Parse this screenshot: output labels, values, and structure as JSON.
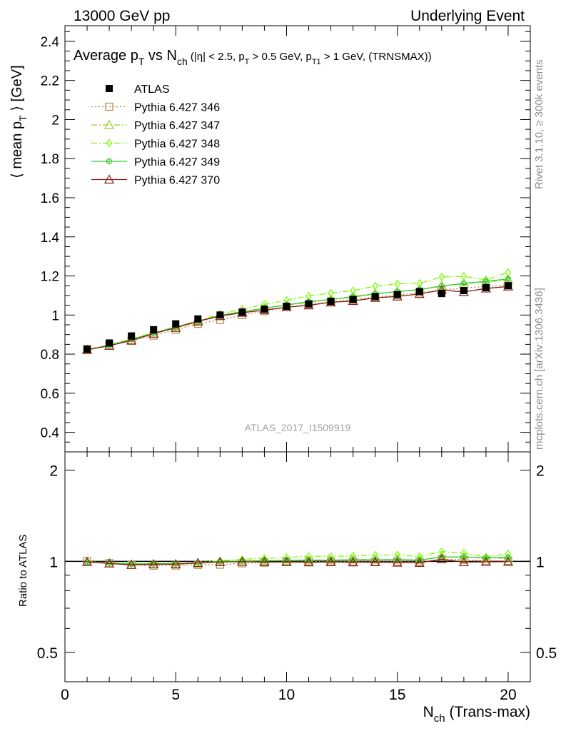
{
  "header": {
    "left": "13000 GeV pp",
    "right": "Underlying Event"
  },
  "side_labels": {
    "rivet": "Rivet 3.1.10, ≥ 300k events",
    "mcplots": "mcplots.cern.ch [arXiv:1306.3436]"
  },
  "chart_data": [
    {
      "type": "line",
      "title_parts": {
        "a": "Average p",
        "a_sub": "T",
        "b": " vs N",
        "b_sub": "ch",
        "c": " (|η| < 2.5, p",
        "c_sub": "T",
        "d": " > 0.5 GeV, p",
        "d_sub": "T1",
        "e": " > 1 GeV, (TRNSMAX))"
      },
      "ylabel_parts": {
        "a": "⟨ mean p",
        "a_sub": "T",
        "b": " ⟩ [GeV]"
      },
      "watermark": "ATLAS_2017_I1509919",
      "xlim": [
        0,
        21
      ],
      "ylim": [
        0.3,
        2.48
      ],
      "yticks": [
        0.4,
        0.6,
        0.8,
        1,
        1.2,
        1.4,
        1.6,
        1.8,
        2,
        2.2,
        2.4
      ],
      "ytick_labels": [
        "0.4",
        "0.6",
        "0.8",
        "1",
        "1.2",
        "1.4",
        "1.6",
        "1.8",
        "2",
        "2.2",
        "2.4"
      ],
      "x": [
        1,
        2,
        3,
        4,
        5,
        6,
        7,
        8,
        9,
        10,
        11,
        12,
        13,
        14,
        15,
        16,
        17,
        18,
        19,
        20
      ],
      "legend_position": "top-left",
      "series": [
        {
          "name": "ATLAS",
          "color": "#000000",
          "marker": "filled-square",
          "line": "none",
          "values": [
            0.825,
            0.857,
            0.893,
            0.925,
            0.955,
            0.98,
            1.0,
            1.015,
            1.03,
            1.045,
            1.057,
            1.07,
            1.08,
            1.095,
            1.105,
            1.12,
            1.11,
            1.125,
            1.14,
            1.15
          ]
        },
        {
          "name": "Pythia 6.427 346",
          "color": "#b8864b",
          "marker": "open-square",
          "line": "dotted",
          "values": [
            0.826,
            0.845,
            0.868,
            0.895,
            0.925,
            0.955,
            0.975,
            1.0,
            1.02,
            1.04,
            1.055,
            1.068,
            1.078,
            1.092,
            1.102,
            1.115,
            1.128,
            1.138,
            1.146,
            1.155
          ]
        },
        {
          "name": "Pythia 6.427 347",
          "color": "#9acd32",
          "marker": "open-triangle",
          "line": "dashdot",
          "values": [
            0.822,
            0.843,
            0.87,
            0.905,
            0.935,
            0.965,
            0.995,
            1.015,
            1.035,
            1.05,
            1.065,
            1.08,
            1.095,
            1.11,
            1.12,
            1.13,
            1.15,
            1.16,
            1.17,
            1.178
          ]
        },
        {
          "name": "Pythia 6.427 348",
          "color": "#7cfc00",
          "marker": "open-diamond",
          "line": "dashdot",
          "values": [
            0.823,
            0.848,
            0.878,
            0.91,
            0.94,
            0.97,
            1.005,
            1.03,
            1.055,
            1.075,
            1.098,
            1.112,
            1.125,
            1.148,
            1.16,
            1.162,
            1.195,
            1.198,
            1.18,
            1.218
          ]
        },
        {
          "name": "Pythia 6.427 349",
          "color": "#32cd32",
          "marker": "circle-cross",
          "line": "solid",
          "values": [
            0.822,
            0.845,
            0.875,
            0.908,
            0.938,
            0.968,
            0.998,
            1.018,
            1.035,
            1.052,
            1.068,
            1.08,
            1.092,
            1.108,
            1.12,
            1.13,
            1.148,
            1.162,
            1.172,
            1.185
          ]
        },
        {
          "name": "Pythia 6.427 370",
          "color": "#8b1a1a",
          "marker": "open-triangle",
          "line": "solid",
          "values": [
            0.822,
            0.843,
            0.87,
            0.905,
            0.935,
            0.968,
            0.995,
            1.012,
            1.025,
            1.04,
            1.05,
            1.065,
            1.072,
            1.088,
            1.095,
            1.108,
            1.128,
            1.118,
            1.136,
            1.146
          ]
        }
      ]
    },
    {
      "type": "line",
      "ylabel": "Ratio to ATLAS",
      "xlabel_parts": {
        "a": "N",
        "a_sub": "ch",
        "b": " (Trans-max)"
      },
      "xlim": [
        0,
        21
      ],
      "xticks": [
        0,
        5,
        10,
        15,
        20
      ],
      "xtick_labels": [
        "0",
        "5",
        "10",
        "15",
        "20"
      ],
      "ylim": [
        0.4,
        2.3
      ],
      "yscale": "log",
      "yticks": [
        0.5,
        1,
        2
      ],
      "ytick_labels": [
        "0.5",
        "1",
        "2"
      ],
      "reference_line": 1,
      "x": [
        1,
        2,
        3,
        4,
        5,
        6,
        7,
        8,
        9,
        10,
        11,
        12,
        13,
        14,
        15,
        16,
        17,
        18,
        19,
        20
      ],
      "series": [
        {
          "name": "Pythia 6.427 346",
          "values": [
            1.001,
            0.986,
            0.972,
            0.968,
            0.969,
            0.974,
            0.975,
            0.985,
            0.99,
            0.995,
            0.998,
            0.998,
            0.998,
            0.997,
            0.997,
            0.996,
            1.016,
            1.012,
            1.005,
            1.004
          ]
        },
        {
          "name": "Pythia 6.427 347",
          "values": [
            0.996,
            0.984,
            0.974,
            0.978,
            0.979,
            0.985,
            0.995,
            1.0,
            1.005,
            1.005,
            1.008,
            1.009,
            1.014,
            1.014,
            1.014,
            1.009,
            1.036,
            1.031,
            1.026,
            1.024
          ]
        },
        {
          "name": "Pythia 6.427 348",
          "values": [
            0.998,
            0.99,
            0.983,
            0.984,
            0.984,
            0.99,
            1.005,
            1.015,
            1.024,
            1.029,
            1.039,
            1.039,
            1.042,
            1.048,
            1.05,
            1.037,
            1.077,
            1.065,
            1.035,
            1.059
          ]
        },
        {
          "name": "Pythia 6.427 349",
          "values": [
            0.996,
            0.986,
            0.98,
            0.982,
            0.982,
            0.988,
            0.998,
            1.003,
            1.005,
            1.007,
            1.01,
            1.009,
            1.011,
            1.012,
            1.014,
            1.009,
            1.034,
            1.033,
            1.028,
            1.03
          ]
        },
        {
          "name": "Pythia 6.427 370",
          "values": [
            0.996,
            0.984,
            0.974,
            0.978,
            0.979,
            0.988,
            0.995,
            0.997,
            0.995,
            0.995,
            0.993,
            0.995,
            0.993,
            0.994,
            0.991,
            0.989,
            1.016,
            0.994,
            0.996,
            0.997
          ]
        }
      ]
    }
  ]
}
